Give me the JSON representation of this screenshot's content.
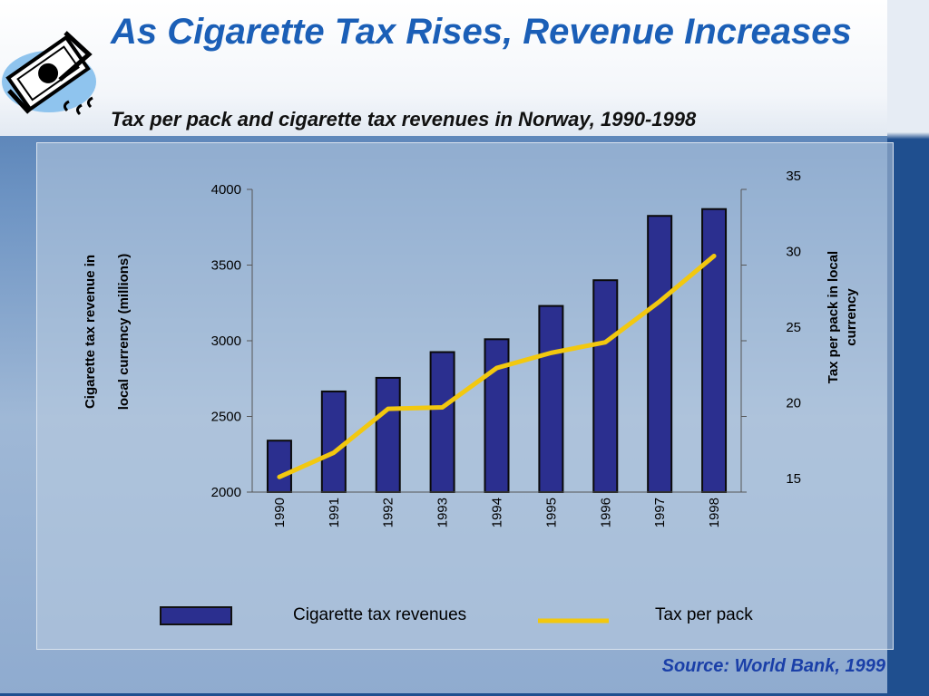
{
  "slide": {
    "title": "As Cigarette Tax Rises, Revenue Increases",
    "subtitle": "Tax per pack and cigarette tax revenues in Norway, 1990-1998",
    "source": "Source: World Bank, 1999",
    "logo_icon": "money-icon"
  },
  "colors": {
    "title": "#1b5fb7",
    "bar_fill": "#2b2f8f",
    "line": "#f2c80f",
    "source": "#1a3fa8"
  },
  "chart_data": {
    "type": "bar",
    "categories": [
      "1990",
      "1991",
      "1992",
      "1993",
      "1994",
      "1995",
      "1996",
      "1997",
      "1998"
    ],
    "series": [
      {
        "name": "Cigarette tax revenues",
        "type": "bar",
        "axis": "left",
        "values": [
          2340,
          2665,
          2755,
          2925,
          3010,
          3230,
          3400,
          3825,
          3870
        ]
      },
      {
        "name": "Tax per pack",
        "type": "line",
        "axis": "right",
        "values": [
          16.0,
          17.6,
          20.5,
          20.6,
          23.2,
          24.2,
          24.9,
          27.6,
          30.6
        ]
      }
    ],
    "y_left": {
      "label_line1": "Cigarette tax revenue in",
      "label_line2": "local currency (millions)",
      "ylim": [
        2000,
        4000
      ],
      "ticks": [
        "2000",
        "2500",
        "3000",
        "3500",
        "4000"
      ]
    },
    "y_right": {
      "label_line1": "Tax per pack in local",
      "label_line2": "currency",
      "ylim": [
        15,
        35
      ],
      "ticks": [
        "15",
        "20",
        "25",
        "30",
        "35"
      ]
    },
    "grid": false,
    "legend_position": "bottom"
  }
}
